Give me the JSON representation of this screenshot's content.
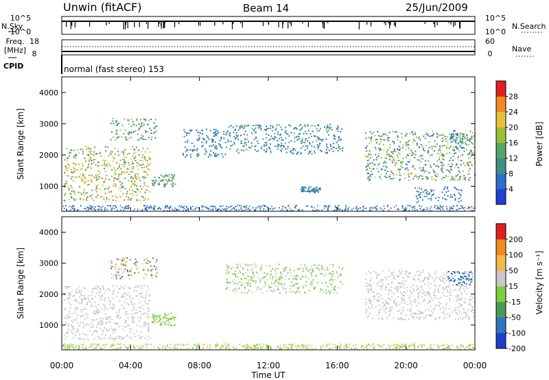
{
  "header": {
    "station": "Unwin (fitACF)",
    "beam": "Beam 14",
    "date": "25/Jun/2009"
  },
  "status_panels": {
    "nsky_label": "N.Sky",
    "nsearch_label": "N.Search",
    "freq_label": "Freq.",
    "freq_unit": "[MHz]",
    "nave_label": "Nave",
    "cpid_label": "CPID",
    "noise_ticks": [
      "10^5",
      "10^0"
    ],
    "freq_ticks": [
      "18",
      "8"
    ],
    "nave_ticks": [
      "60",
      "0"
    ],
    "cpid_text": "normal (fast stereo) 153"
  },
  "colorbars": {
    "power": {
      "label": "Power [dB]",
      "ticks": [
        "28",
        "24",
        "20",
        "16",
        "12",
        "8",
        "4"
      ]
    },
    "velocity": {
      "label": "Velocity [m s⁻¹]",
      "ticks": [
        "200",
        "100",
        "50",
        "15",
        "-15",
        "-50",
        "-100",
        "-200"
      ]
    }
  },
  "colors": {
    "power_scale": [
      "#1f3fd6",
      "#2b6fd0",
      "#3f8f86",
      "#58a36a",
      "#9bbf3a",
      "#e6c23a",
      "#f08a1e",
      "#e02020"
    ],
    "velocity_scale": [
      "#1d3fc8",
      "#2f74c0",
      "#4a9a5a",
      "#7ccf3c",
      "#c8c8c8",
      "#f2b84a",
      "#f08a1e",
      "#e02020"
    ]
  },
  "chart_data": [
    {
      "type": "heatmap",
      "panel": "power",
      "xlabel": "Time UT",
      "ylabel": "Slant Range [km]",
      "x_ticks": [
        "00:00",
        "04:00",
        "08:00",
        "12:00",
        "16:00",
        "20:00",
        "00:00"
      ],
      "y_ticks": [
        1000,
        2000,
        3000,
        4000
      ],
      "xlim_hours": [
        0,
        24
      ],
      "ylim_km": [
        200,
        4500
      ],
      "scatter_regions": [
        {
          "t": [
            0.1,
            5.1
          ],
          "r": [
            550,
            2300
          ],
          "power_db": [
            10,
            26
          ]
        },
        {
          "t": [
            2.8,
            5.5
          ],
          "r": [
            2500,
            3200
          ],
          "power_db": [
            6,
            20
          ]
        },
        {
          "t": [
            5.2,
            6.6
          ],
          "r": [
            1000,
            1400
          ],
          "power_db": [
            8,
            18
          ]
        },
        {
          "t": [
            7.0,
            9.5
          ],
          "r": [
            1950,
            2850
          ],
          "power_db": [
            4,
            10
          ]
        },
        {
          "t": [
            9.5,
            16.3
          ],
          "r": [
            2050,
            3000
          ],
          "power_db": [
            4,
            14
          ]
        },
        {
          "t": [
            13.8,
            15.0
          ],
          "r": [
            820,
            1000
          ],
          "power_db": [
            6,
            12
          ]
        },
        {
          "t": [
            17.6,
            24.0
          ],
          "r": [
            1200,
            2800
          ],
          "power_db": [
            4,
            22
          ]
        },
        {
          "t": [
            20.5,
            23.2
          ],
          "r": [
            500,
            1000
          ],
          "power_db": [
            4,
            10
          ]
        },
        {
          "t": [
            22.5,
            23.8
          ],
          "r": [
            2400,
            2700
          ],
          "power_db": [
            6,
            18
          ]
        }
      ]
    },
    {
      "type": "heatmap",
      "panel": "velocity",
      "xlabel": "Time UT",
      "ylabel": "Slant Range [km]",
      "x_ticks": [
        "00:00",
        "04:00",
        "08:00",
        "12:00",
        "16:00",
        "20:00",
        "00:00"
      ],
      "y_ticks": [
        1000,
        2000,
        3000,
        4000
      ],
      "xlim_hours": [
        0,
        24
      ],
      "ylim_km": [
        200,
        4500
      ],
      "scatter_regions": [
        {
          "t": [
            0.1,
            5.1
          ],
          "r": [
            550,
            2300
          ],
          "velocity_ms": [
            -15,
            15
          ]
        },
        {
          "t": [
            2.8,
            5.5
          ],
          "r": [
            2500,
            3200
          ],
          "velocity_ms": [
            -200,
            200
          ]
        },
        {
          "t": [
            5.2,
            6.6
          ],
          "r": [
            1000,
            1400
          ],
          "velocity_ms": [
            -50,
            -15
          ]
        },
        {
          "t": [
            9.5,
            16.3
          ],
          "r": [
            2050,
            3000
          ],
          "velocity_ms": [
            -50,
            15
          ]
        },
        {
          "t": [
            17.6,
            24.0
          ],
          "r": [
            1200,
            2800
          ],
          "velocity_ms": [
            -15,
            15
          ]
        },
        {
          "t": [
            22.4,
            23.8
          ],
          "r": [
            2300,
            2750
          ],
          "velocity_ms": [
            -200,
            -100
          ]
        }
      ]
    }
  ]
}
